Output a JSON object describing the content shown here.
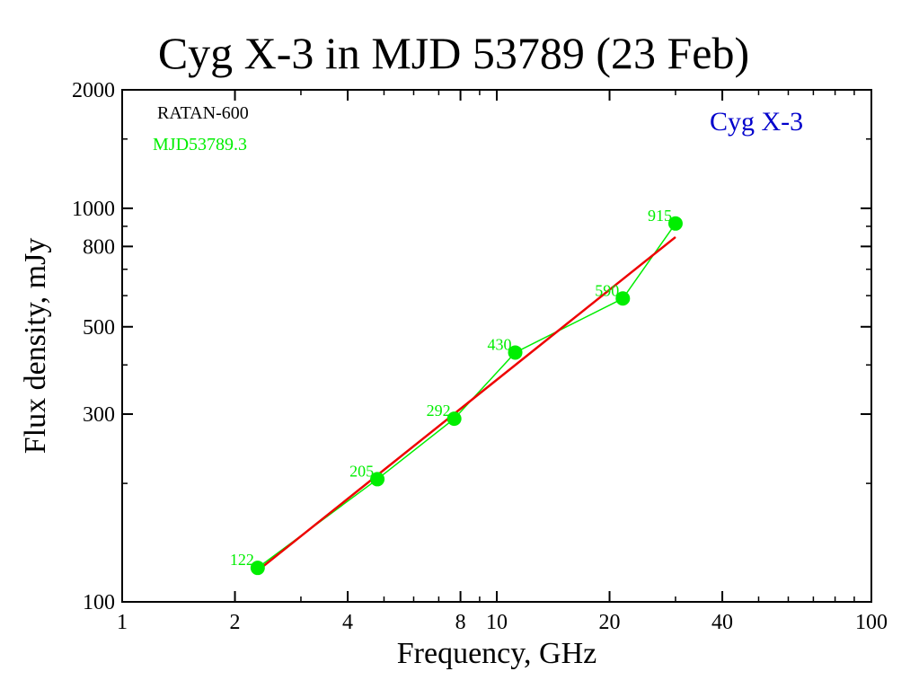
{
  "chart_data": {
    "type": "scatter",
    "title": "Cyg X-3 in MJD 53789 (23 Feb)",
    "xlabel": "Frequency, GHz",
    "ylabel": "Flux density,  mJy",
    "xscale": "log",
    "yscale": "log",
    "xlim": [
      1,
      100
    ],
    "ylim": [
      100,
      2000
    ],
    "x_ticks": [
      1,
      2,
      4,
      8,
      10,
      20,
      40,
      100
    ],
    "x_tick_labels": [
      "1",
      "2",
      "4",
      "8",
      "10",
      "20",
      "40",
      "100"
    ],
    "y_ticks": [
      100,
      300,
      500,
      800,
      1000,
      2000
    ],
    "y_tick_labels": [
      "100",
      "300",
      "500",
      "800",
      "1000",
      "2000"
    ],
    "grid": false,
    "annotations": {
      "instrument": "RATAN-600",
      "epoch": "MJD53789.3",
      "source": "Cyg X-3"
    },
    "series": [
      {
        "type": "scatter-line",
        "color": "#00ee00",
        "x": [
          2.3,
          4.8,
          7.7,
          11.2,
          21.7,
          30.0
        ],
        "values": [
          122,
          205,
          292,
          430,
          590,
          915
        ],
        "labels": [
          "122",
          "205",
          "292",
          "430",
          "590",
          "915"
        ]
      },
      {
        "type": "fit-line",
        "color": "#ee0000",
        "x": [
          2.3,
          30.0
        ],
        "values": [
          120,
          845
        ]
      }
    ]
  }
}
